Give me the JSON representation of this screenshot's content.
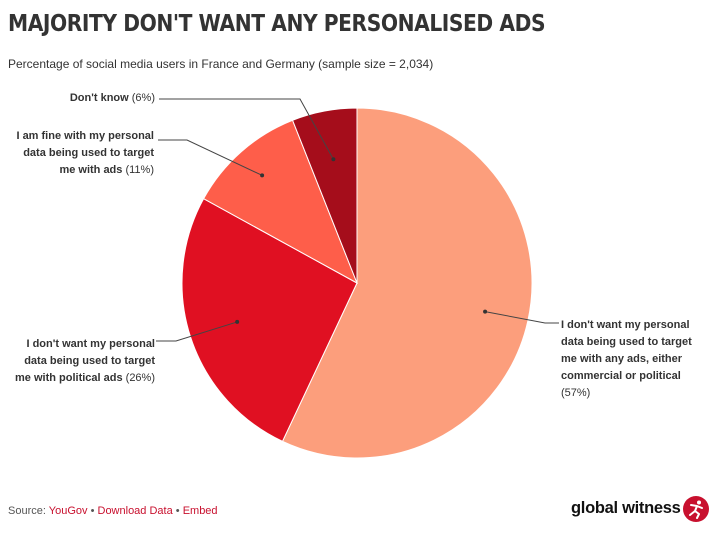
{
  "title": "MAJORITY DON'T WANT ANY PERSONALISED ADS",
  "subtitle": "Percentage of social media users in France and Germany (sample size = 2,034)",
  "chart_data": {
    "type": "pie",
    "title": "MAJORITY DON'T WANT ANY PERSONALISED ADS",
    "start": "12 o'clock, clockwise",
    "slices": [
      {
        "label": "I don't want my personal data being used to target me with any ads, either commercial or political",
        "value": 57,
        "pct": "(57%)",
        "color": "#fc9e7c"
      },
      {
        "label": "I don't want my personal data being used to target me with political ads",
        "value": 26,
        "pct": "(26%)",
        "color": "#e01022"
      },
      {
        "label": "I am fine with my personal data being used to target me with ads",
        "value": 11,
        "pct": "(11%)",
        "color": "#fe5e4a"
      },
      {
        "label": "Don't know",
        "value": 6,
        "pct": "(6%)",
        "color": "#a50d1b"
      }
    ]
  },
  "labels": {
    "any_ads": [
      "I don't want my personal",
      "data being used to target",
      "me with any ads, either",
      "commercial or political"
    ],
    "political": [
      "I don't want my personal",
      "data being used to target",
      "me with political ads"
    ],
    "fine": [
      "I am fine with my personal",
      "data being used to target",
      "me with ads"
    ],
    "dont_know": "Don't know"
  },
  "footer": {
    "source_prefix": "Source: ",
    "source": "YouGov",
    "sep": " • ",
    "download": "Download Data",
    "embed": "Embed"
  },
  "brand": {
    "name": "global witness",
    "accent": "#c8102e"
  }
}
